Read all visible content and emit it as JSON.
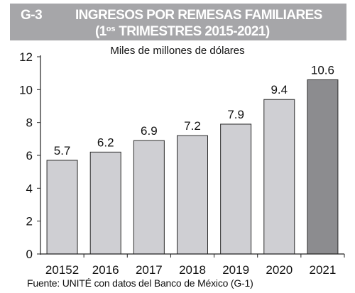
{
  "header": {
    "code": "G-3",
    "line1": "INGRESOS POR REMESAS FAMILIARES",
    "line2_prefix": "(1",
    "line2_sup": "os",
    "line2_rest": " TRIMESTRES 2015-2021)"
  },
  "units": "Miles de millones de dólares",
  "source": "Fuente: UNITÉ con datos del Banco de México (G-1)",
  "colors": {
    "bar": "#cfcfd3",
    "bar_highlight": "#8c8c8f",
    "title_bg": "#a6a6a9"
  },
  "chart_data": {
    "type": "bar",
    "title": "INGRESOS POR REMESAS FAMILIARES (1os TRIMESTRES 2015-2021)",
    "ylabel": "Miles de millones de dólares",
    "xlabel": "",
    "categories": [
      "20152",
      "2016",
      "2017",
      "2018",
      "2019",
      "2020",
      "2021"
    ],
    "values": [
      5.7,
      6.2,
      6.9,
      7.2,
      7.9,
      9.4,
      10.6
    ],
    "value_labels": [
      "5.7",
      "6.2",
      "6.9",
      "7.2",
      "7.9",
      "9.4",
      "10.6"
    ],
    "highlight_index": 6,
    "ylim": [
      0,
      12
    ],
    "yticks": [
      0,
      2,
      4,
      6,
      8,
      10,
      12
    ],
    "grid": false,
    "legend": "none"
  }
}
